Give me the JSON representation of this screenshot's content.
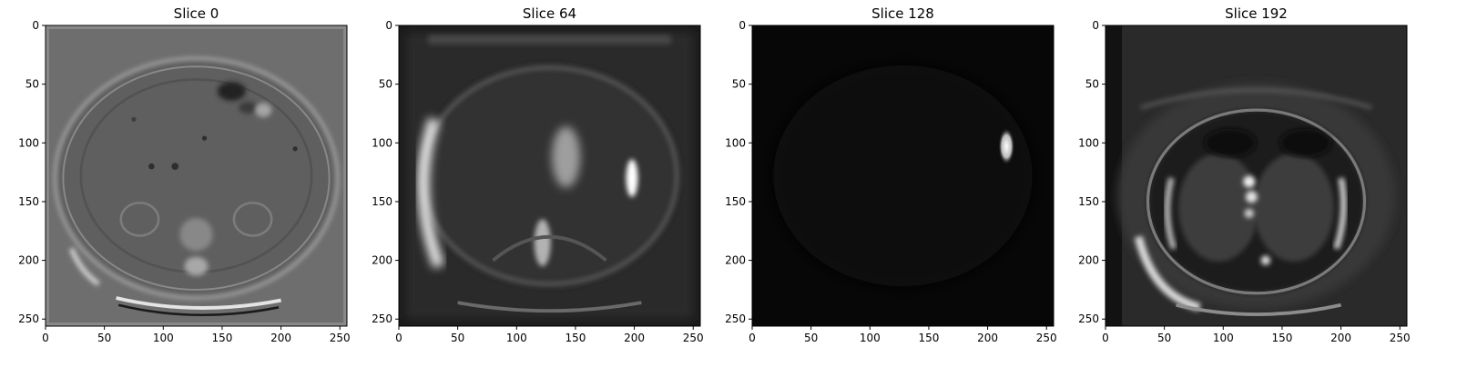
{
  "figure": {
    "panels": [
      {
        "title": "Slice 0",
        "variant": "slice0"
      },
      {
        "title": "Slice 64",
        "variant": "slice64"
      },
      {
        "title": "Slice 128",
        "variant": "slice128"
      },
      {
        "title": "Slice 192",
        "variant": "slice192"
      }
    ],
    "x_ticks": [
      "0",
      "50",
      "100",
      "150",
      "200",
      "250"
    ],
    "y_ticks": [
      "0",
      "50",
      "100",
      "150",
      "200",
      "250"
    ],
    "tick_values": [
      0,
      50,
      100,
      150,
      200,
      250
    ],
    "pixel_extent": 256,
    "colormap": "gray"
  }
}
